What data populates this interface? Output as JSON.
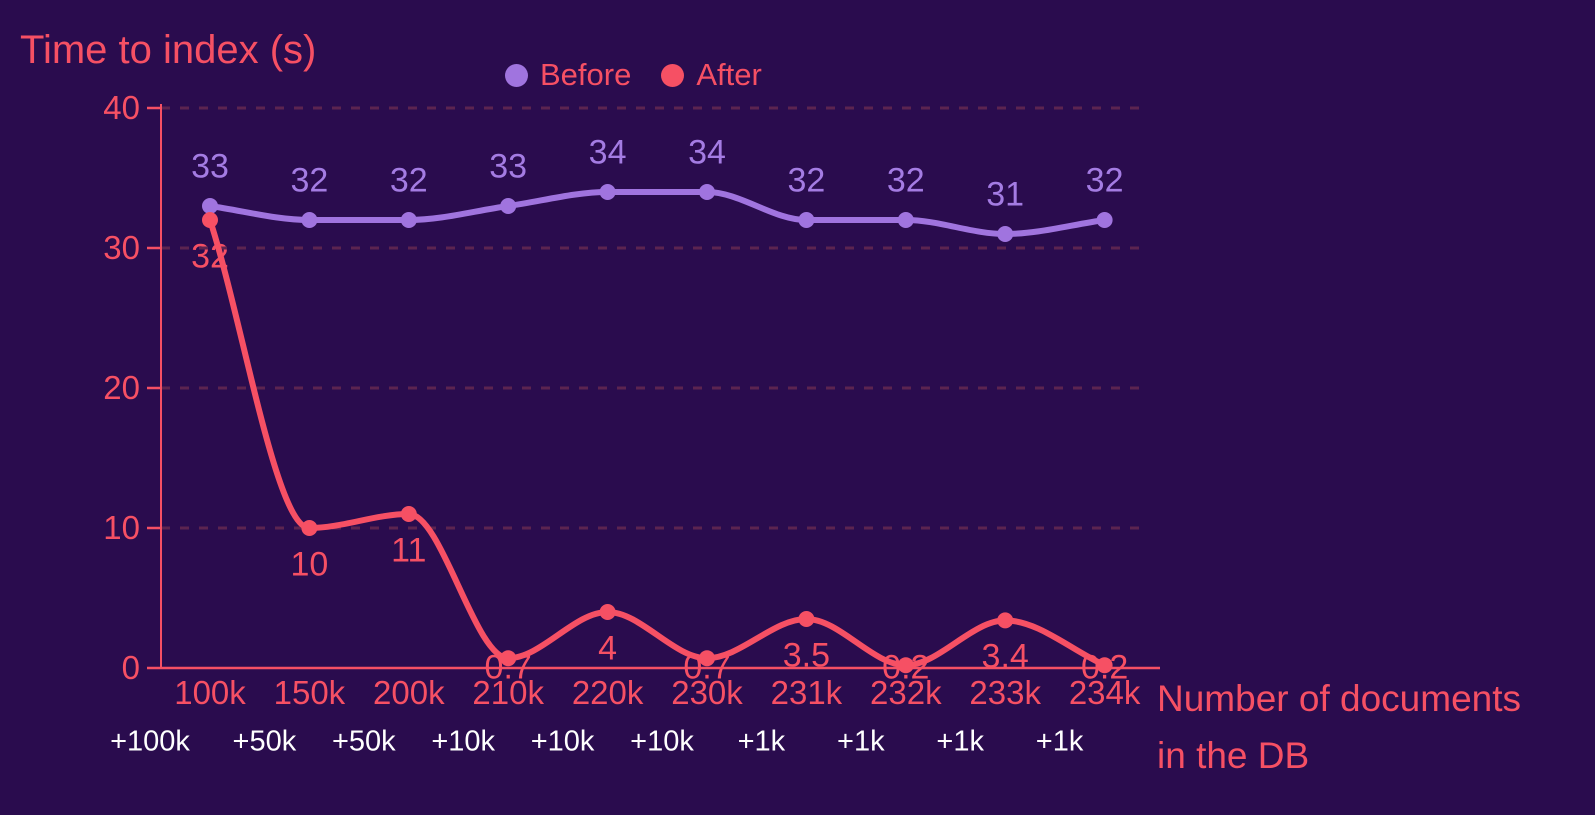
{
  "title": "Time to index (s)",
  "legend": [
    {
      "label": "Before",
      "color": "#A074DF"
    },
    {
      "label": "After",
      "color": "#F65064"
    }
  ],
  "x_axis_title_line1": "Number of documents",
  "x_axis_title_line2": "in the DB",
  "colors": {
    "background": "#2A0C4E",
    "accent": "#F65064",
    "before_series": "#A074DF",
    "before_label_text": "#A47CE3",
    "after_series": "#F65064",
    "increment_text": "#FFFFFF",
    "gridline": "#5C2450"
  },
  "chart_data": {
    "type": "line",
    "title": "Time to index (s)",
    "xlabel": "Number of documents in the DB",
    "ylabel": "Time to index (s)",
    "categories": [
      "100k",
      "150k",
      "200k",
      "210k",
      "220k",
      "230k",
      "231k",
      "232k",
      "233k",
      "234k"
    ],
    "increment_labels": [
      "+100k",
      "+50k",
      "+50k",
      "+10k",
      "+10k",
      "+10k",
      "+1k",
      "+1k",
      "+1k",
      "+1k"
    ],
    "series": [
      {
        "name": "Before",
        "color": "#A074DF",
        "values": [
          33,
          32,
          32,
          33,
          34,
          34,
          32,
          32,
          31,
          32
        ]
      },
      {
        "name": "After",
        "color": "#F65064",
        "values": [
          32,
          10,
          11,
          0.7,
          4,
          0.7,
          3.5,
          0.2,
          3.4,
          0.2
        ]
      }
    ],
    "yticks": [
      0,
      10,
      20,
      30,
      40
    ],
    "ylim": [
      0,
      40
    ],
    "grid": "horizontal-dashed",
    "legend_position": "top-center"
  }
}
